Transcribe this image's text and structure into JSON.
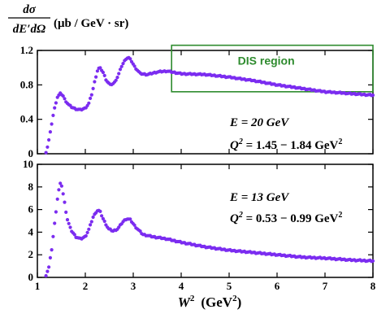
{
  "chart_data": {
    "type": "scatter",
    "y_label_parts": {
      "num": "dσ",
      "den": "dE′dΩ",
      "unit": "(μb / GeV · sr)"
    },
    "x_label_parts": {
      "var": "W",
      "sup": "2",
      "unit_open": "(GeV",
      "unit_sup": "2",
      "unit_close": ")"
    },
    "xlim": [
      1,
      8
    ],
    "x_ticks": [
      "1",
      "2",
      "3",
      "4",
      "5",
      "6",
      "7",
      "8"
    ],
    "marker_color": "#7b2cf0",
    "region_color": "#2e8b2e",
    "panels": [
      {
        "ylim": [
          0,
          1.2
        ],
        "y_ticks": [
          0,
          0.4,
          0.8,
          1.2
        ],
        "y_tick_labels": [
          "0",
          "0.4",
          "0.8",
          "1.2"
        ],
        "note_E": "E = 20 GeV",
        "note_Q": {
          "base": "Q",
          "sup": "2",
          "mid": " = 1.45 − 1.84 GeV",
          "sup2": "2"
        },
        "region": {
          "label": "DIS region",
          "x": [
            3.8,
            8.0
          ],
          "y": [
            0.72,
            1.26
          ]
        },
        "profile": [
          [
            1.18,
            0.02
          ],
          [
            1.22,
            0.1
          ],
          [
            1.27,
            0.25
          ],
          [
            1.32,
            0.42
          ],
          [
            1.37,
            0.56
          ],
          [
            1.42,
            0.66
          ],
          [
            1.48,
            0.7
          ],
          [
            1.53,
            0.68
          ],
          [
            1.58,
            0.62
          ],
          [
            1.65,
            0.57
          ],
          [
            1.72,
            0.54
          ],
          [
            1.8,
            0.52
          ],
          [
            1.9,
            0.51
          ],
          [
            2.0,
            0.53
          ],
          [
            2.07,
            0.58
          ],
          [
            2.14,
            0.7
          ],
          [
            2.2,
            0.85
          ],
          [
            2.26,
            0.98
          ],
          [
            2.3,
            1.0
          ],
          [
            2.36,
            0.96
          ],
          [
            2.44,
            0.85
          ],
          [
            2.52,
            0.8
          ],
          [
            2.6,
            0.82
          ],
          [
            2.68,
            0.9
          ],
          [
            2.76,
            1.02
          ],
          [
            2.84,
            1.1
          ],
          [
            2.9,
            1.12
          ],
          [
            2.96,
            1.08
          ],
          [
            3.04,
            1.0
          ],
          [
            3.15,
            0.93
          ],
          [
            3.3,
            0.92
          ],
          [
            3.5,
            0.95
          ],
          [
            3.7,
            0.96
          ],
          [
            4.0,
            0.93
          ],
          [
            4.5,
            0.92
          ],
          [
            5.0,
            0.89
          ],
          [
            5.5,
            0.85
          ],
          [
            6.0,
            0.8
          ],
          [
            6.5,
            0.76
          ],
          [
            7.0,
            0.72
          ],
          [
            7.5,
            0.7
          ],
          [
            8.0,
            0.68
          ]
        ]
      },
      {
        "ylim": [
          0,
          10
        ],
        "y_ticks": [
          0,
          2,
          4,
          6,
          8,
          10
        ],
        "y_tick_labels": [
          "0",
          "2",
          "4",
          "6",
          "8",
          "10"
        ],
        "note_E": "E = 13 GeV",
        "note_Q": {
          "base": "Q",
          "sup": "2",
          "mid": " = 0.53 − 0.99 GeV",
          "sup2": "2"
        },
        "profile": [
          [
            1.18,
            0.2
          ],
          [
            1.24,
            0.9
          ],
          [
            1.3,
            2.5
          ],
          [
            1.36,
            4.8
          ],
          [
            1.42,
            7.0
          ],
          [
            1.47,
            8.3
          ],
          [
            1.51,
            8.1
          ],
          [
            1.56,
            6.8
          ],
          [
            1.62,
            5.2
          ],
          [
            1.7,
            4.2
          ],
          [
            1.8,
            3.6
          ],
          [
            1.9,
            3.4
          ],
          [
            2.0,
            3.6
          ],
          [
            2.08,
            4.3
          ],
          [
            2.16,
            5.3
          ],
          [
            2.24,
            5.9
          ],
          [
            2.3,
            5.9
          ],
          [
            2.38,
            5.1
          ],
          [
            2.48,
            4.3
          ],
          [
            2.58,
            4.1
          ],
          [
            2.68,
            4.3
          ],
          [
            2.78,
            4.9
          ],
          [
            2.86,
            5.2
          ],
          [
            2.94,
            5.1
          ],
          [
            3.04,
            4.5
          ],
          [
            3.2,
            3.8
          ],
          [
            3.4,
            3.6
          ],
          [
            3.7,
            3.4
          ],
          [
            4.0,
            3.1
          ],
          [
            4.5,
            2.7
          ],
          [
            5.0,
            2.4
          ],
          [
            5.5,
            2.2
          ],
          [
            6.0,
            2.0
          ],
          [
            6.5,
            1.8
          ],
          [
            7.0,
            1.7
          ],
          [
            7.5,
            1.55
          ],
          [
            8.0,
            1.45
          ]
        ]
      }
    ]
  }
}
